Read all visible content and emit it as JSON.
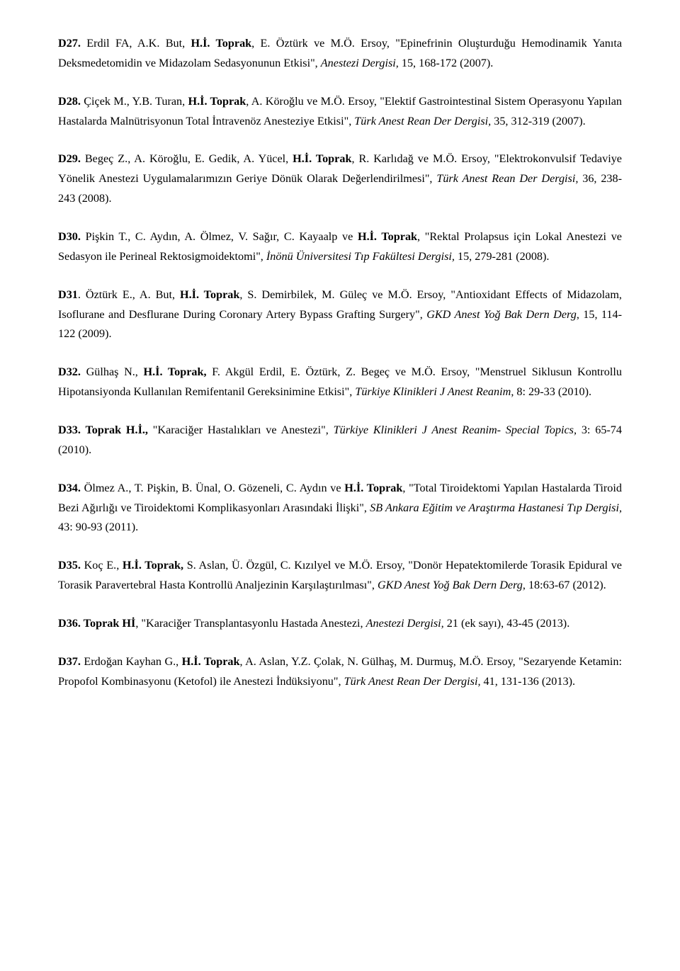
{
  "entries": [
    {
      "code": "D27.",
      "t1": " Erdil FA, A.K. But, ",
      "auth": "H.İ. Toprak",
      "t2": ", E. Öztürk ve M.Ö. Ersoy, \"Epinefrinin Oluşturduğu Hemodinamik Yanıta Deksmedetomidin ve Midazolam Sedasyonunun Etkisi\", ",
      "jrn": "Anestezi Dergisi,",
      "t3": " 15, 168-172 (2007)."
    },
    {
      "code": "D28.",
      "t1": " Çiçek M., Y.B. Turan, ",
      "auth": "H.İ. Toprak",
      "t2": ", A. Köroğlu ve M.Ö. Ersoy, \"Elektif Gastrointestinal Sistem Operasyonu Yapılan Hastalarda Malnütrisyonun Total İntravenöz Anesteziye Etkisi\", ",
      "jrn": "Türk Anest Rean Der Dergisi,",
      "t3": " 35, 312-319 (2007)."
    },
    {
      "code": "D29.",
      "t1": " Begeç Z., A. Köroğlu, E. Gedik, A. Yücel, ",
      "auth": "H.İ. Toprak",
      "t2": ", R. Karlıdağ ve M.Ö. Ersoy, \"Elektrokonvulsif Tedaviye Yönelik Anestezi Uygulamalarımızın Geriye Dönük Olarak Değerlendirilmesi\", ",
      "jrn": "Türk Anest Rean Der Dergisi,",
      "t3": " 36, 238-243 (2008)."
    },
    {
      "code": "D30.",
      "t1": " Pişkin T., C. Aydın, A. Ölmez, V. Sağır, C. Kayaalp ve ",
      "auth": "H.İ. Toprak",
      "t2": ", \"Rektal Prolapsus için Lokal Anestezi ve Sedasyon ile Perineal Rektosigmoidektomi\", ",
      "jrn": "İnönü Üniversitesi Tıp Fakültesi Dergisi,",
      "t3": " 15, 279-281 (2008)."
    },
    {
      "code": "D31",
      "t1": ". Öztürk E., A. But, ",
      "auth": "H.İ. Toprak",
      "t2": ", S. Demirbilek, M. Güleç ve M.Ö. Ersoy, \"Antioxidant Effects of Midazolam, Isoflurane and Desflurane During Coronary Artery Bypass Grafting Surgery\", ",
      "jrn": "GKD Anest Yoğ Bak Dern Derg",
      "t3": ", 15, 114-122 (2009)."
    },
    {
      "code": "D32.",
      "t1": " Gülhaş N., ",
      "auth": "H.İ. Toprak,",
      "t2": " F. Akgül Erdil, E. Öztürk, Z. Begeç ve M.Ö. Ersoy, \"Menstruel Siklusun Kontrollu Hipotansiyonda Kullanılan Remifentanil Gereksinimine Etkisi\", ",
      "jrn": "Türkiye Klinikleri J Anest Reanim",
      "t3": ", 8: 29-33 (2010)."
    },
    {
      "code": "D33. Toprak H.İ.,",
      "t1": " \"Karaciğer Hastalıkları ve Anestezi\", ",
      "auth": "",
      "t2": "",
      "jrn": "Türkiye Klinikleri J Anest Reanim- Special Topics,",
      "t3": " 3: 65-74 (2010)."
    },
    {
      "code": "D34.",
      "t1": " Ölmez A., T. Pişkin, B. Ünal, O. Gözeneli, C. Aydın ve ",
      "auth": "H.İ. Toprak",
      "t2": ", \"Total Tiroidektomi Yapılan Hastalarda Tiroid Bezi Ağırlığı ve Tiroidektomi Komplikasyonları Arasındaki İlişki\", ",
      "jrn": "SB Ankara Eğitim ve Araştırma Hastanesi Tıp Dergisi,",
      "t3": " 43: 90-93 (2011)."
    },
    {
      "code": "D35.",
      "t1": " Koç E., ",
      "auth": "H.İ. Toprak,",
      "t2": " S. Aslan, Ü. Özgül, C. Kızılyel ve M.Ö. Ersoy, \"Donör Hepatektomilerde Torasik Epidural ve Torasik Paravertebral Hasta Kontrollü Analjezinin Karşılaştırılması\", ",
      "jrn": "GKD Anest Yoğ Bak Dern Derg",
      "t3": ", 18:63-67 (2012)."
    },
    {
      "code": "D36. Toprak Hİ",
      "t1": ", \"Karaciğer Transplantasyonlu Hastada Anestezi, ",
      "auth": "",
      "t2": "",
      "jrn": "Anestezi Dergisi,",
      "t3": " 21 (ek sayı), 43-45 (2013)."
    },
    {
      "code": "D37.",
      "t1": " Erdoğan Kayhan G., ",
      "auth": "H.İ. Toprak",
      "t2": ", A. Aslan, Y.Z. Çolak, N. Gülhaş, M. Durmuş, M.Ö. Ersoy, \"Sezaryende Ketamin: Propofol Kombinasyonu (Ketofol) ile Anestezi İndüksiyonu\", ",
      "jrn": "Türk Anest Rean Der Dergisi,",
      "t3": " 41, 131-136 (2013)."
    }
  ]
}
